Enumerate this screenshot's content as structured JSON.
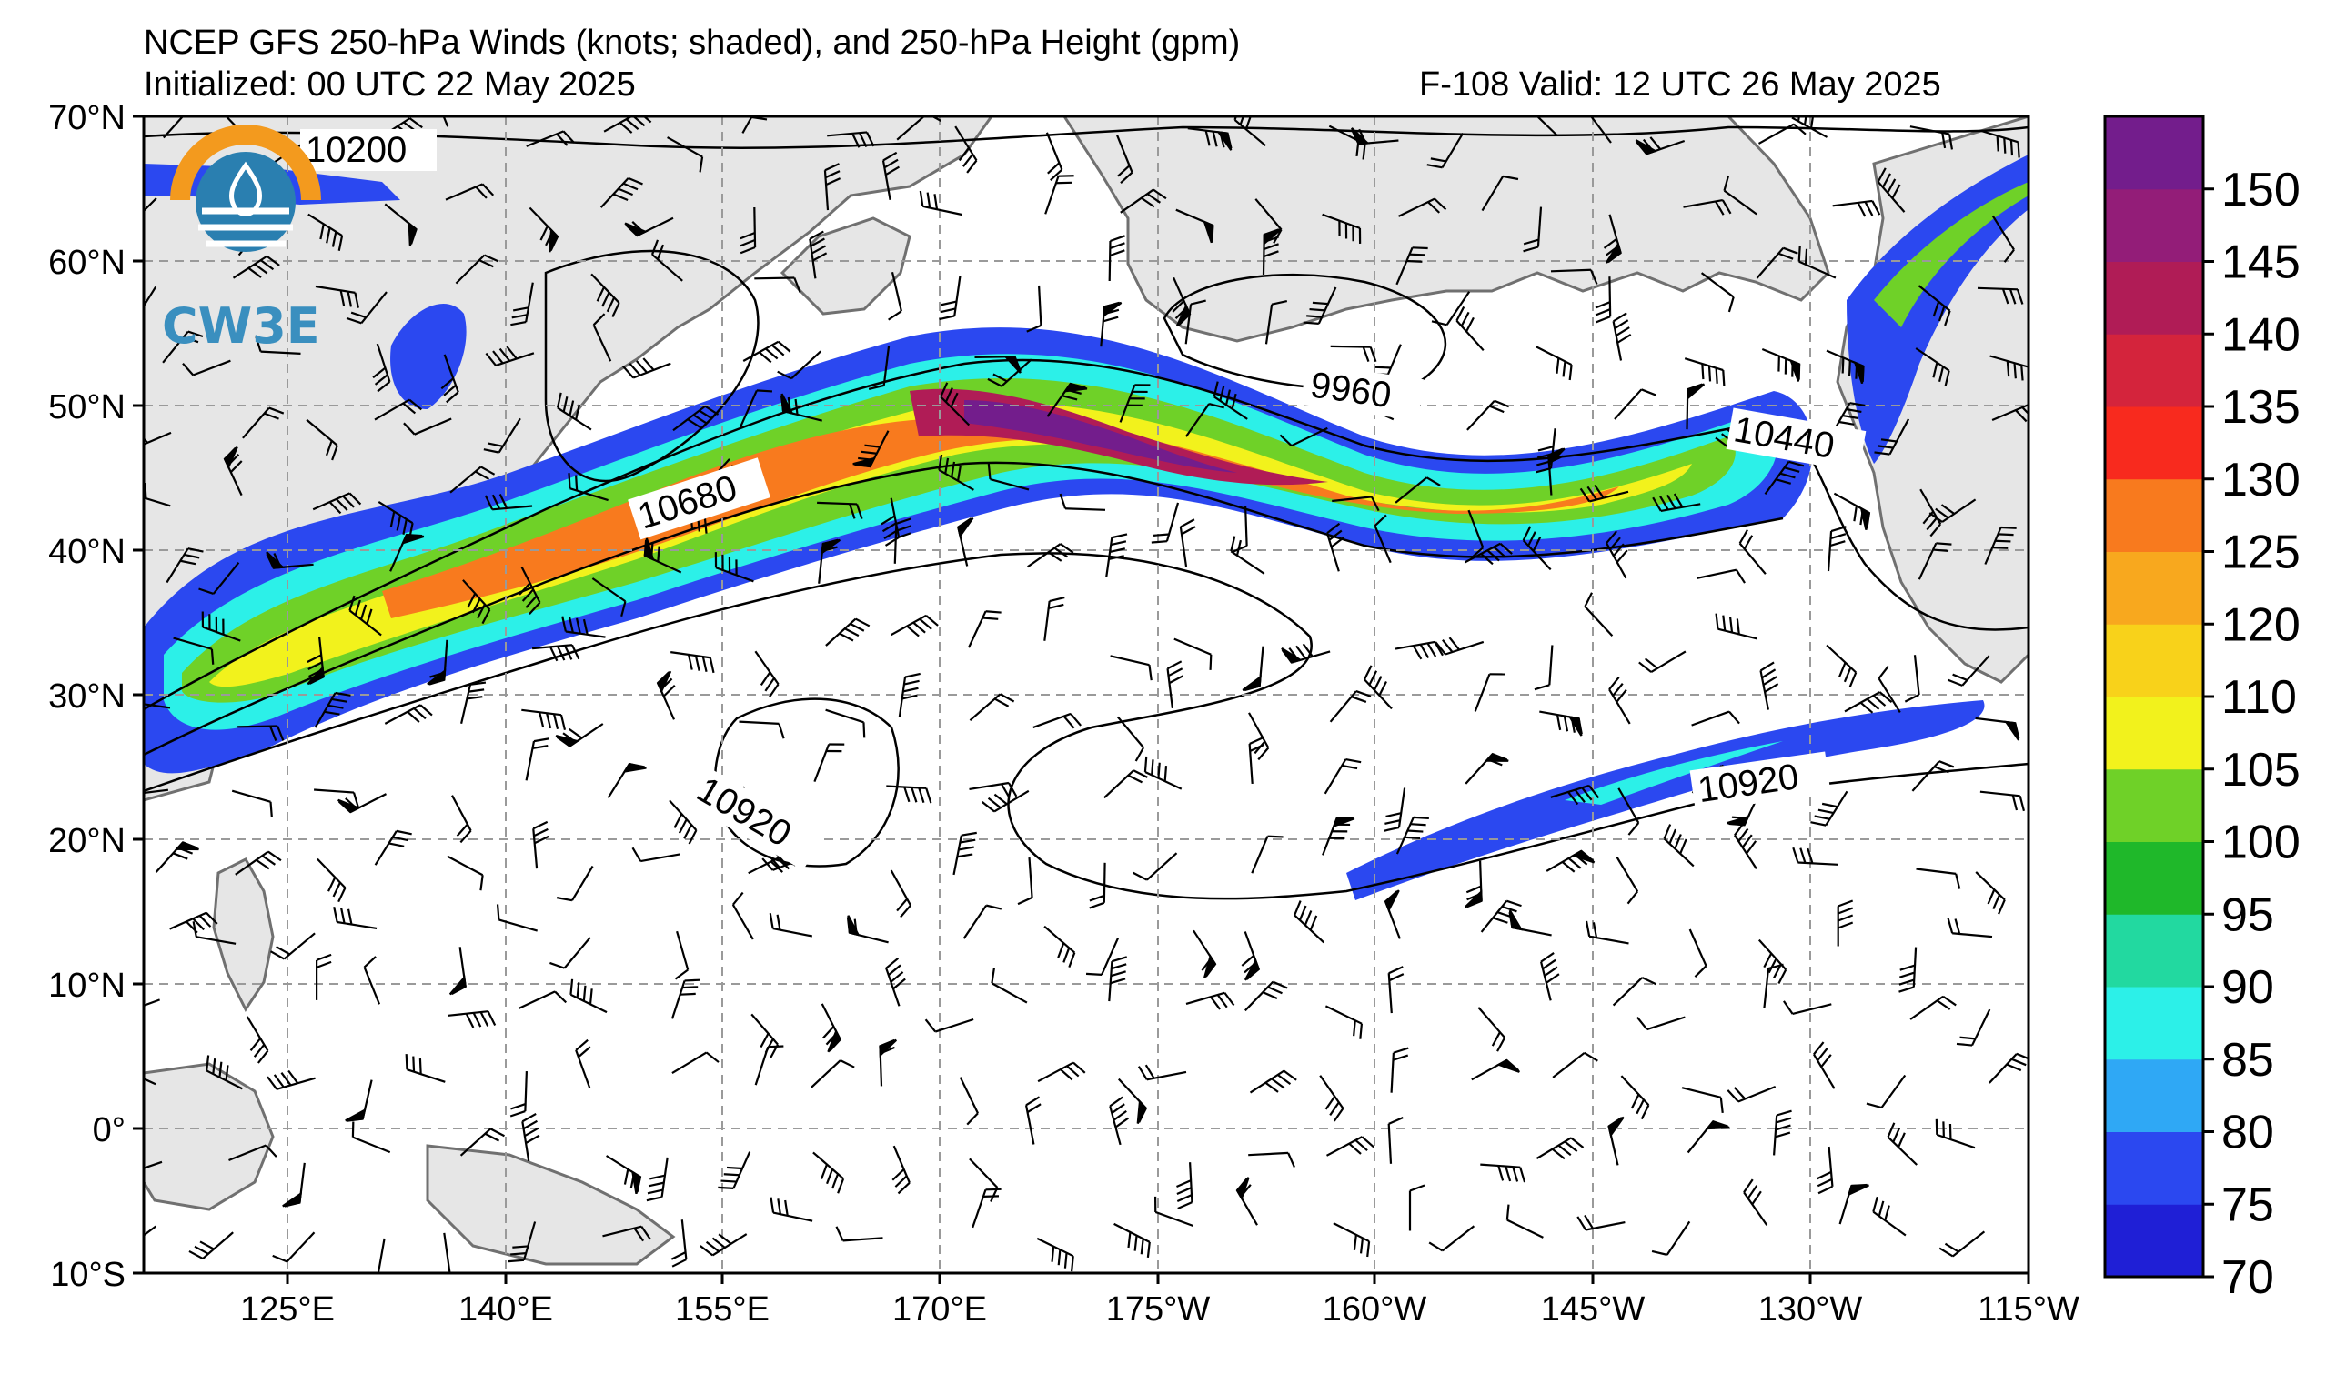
{
  "title": {
    "line1": "NCEP GFS 250-hPa Winds (knots; shaded), and 250-hPa Height (gpm)",
    "init": "Initialized: 00 UTC 22 May 2025",
    "valid": "F-108  Valid: 12 UTC 26 May 2025"
  },
  "logo": {
    "text": "CW3E"
  },
  "axes": {
    "lat_labels": [
      "70°N",
      "60°N",
      "50°N",
      "40°N",
      "30°N",
      "20°N",
      "10°N",
      "0°",
      "10°S"
    ],
    "lon_labels": [
      "125°E",
      "140°E",
      "155°E",
      "170°E",
      "175°W",
      "160°W",
      "145°W",
      "130°W",
      "115°W"
    ]
  },
  "colorbar": {
    "labels": [
      "70",
      "75",
      "80",
      "85",
      "90",
      "95",
      "100",
      "105",
      "110",
      "120",
      "125",
      "130",
      "135",
      "140",
      "145",
      "150"
    ],
    "colors": [
      "#1f1fd6",
      "#2b48f0",
      "#2fa8f5",
      "#2cf0e8",
      "#22d9a0",
      "#1fb82a",
      "#6fd128",
      "#f2f21c",
      "#f8d21a",
      "#f8a81e",
      "#f87a1e",
      "#f82a1e",
      "#d4243c",
      "#b01c56",
      "#931d78",
      "#731d8c"
    ]
  },
  "contour_labels": [
    "10200",
    "9960",
    "10440",
    "10680",
    "10920",
    "10920"
  ],
  "map_colors": {
    "land": "#e6e6e6",
    "coast": "#707070",
    "grid": "#9a9a9a",
    "contour": "#000000"
  }
}
